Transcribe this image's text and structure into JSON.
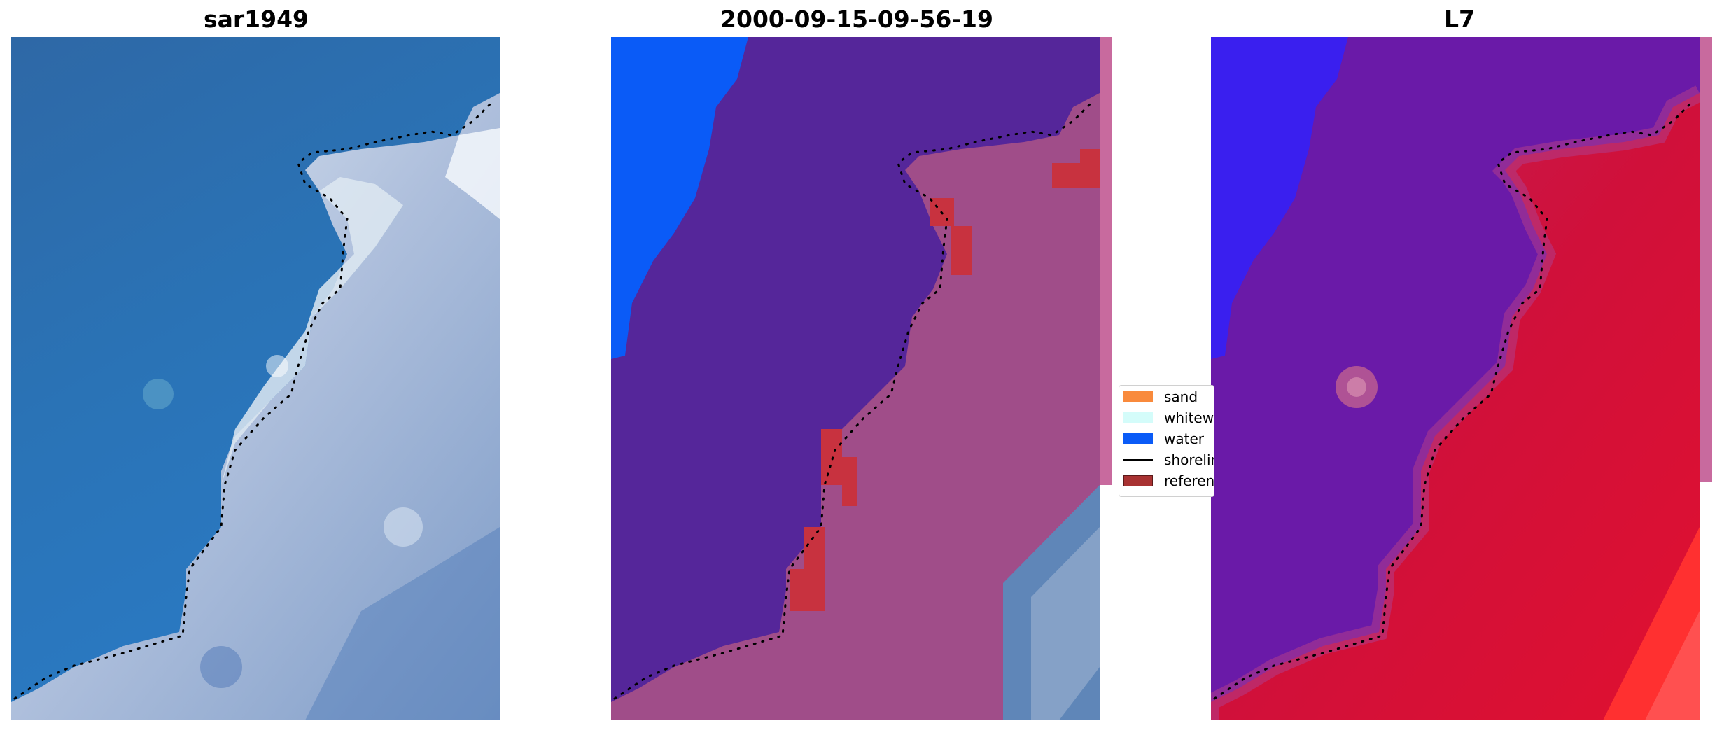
{
  "panels": [
    {
      "title": "sar1949",
      "kind": "rgb"
    },
    {
      "title": "2000-09-15-09-56-19",
      "kind": "classified"
    },
    {
      "title": "L7",
      "kind": "index"
    }
  ],
  "legend": [
    {
      "label": "sand",
      "color": "#f98a3c",
      "type": "patch"
    },
    {
      "label": "whitewater",
      "color": "#d4fcfa",
      "type": "patch"
    },
    {
      "label": "water",
      "color": "#0a5bf7",
      "type": "patch"
    },
    {
      "label": "shoreline",
      "color": "#000000",
      "type": "line"
    },
    {
      "label": "reference",
      "color": "#a83232",
      "type": "patch"
    }
  ],
  "colors": {
    "ocean_rgb": "#2b6aa7",
    "foam_rgb": "#c9d6e6",
    "class_water": "#0a5bf7",
    "class_other_water": "#55269a",
    "class_land": "#a04d89",
    "class_reference": "#c8323f",
    "index_low": "#3a1fef",
    "index_mid": "#6a1aa8",
    "index_high": "#d0103a",
    "index_peak": "#ff3030"
  }
}
